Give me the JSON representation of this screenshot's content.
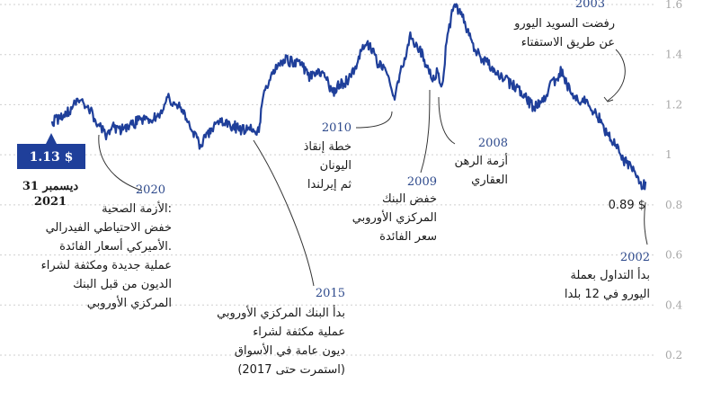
{
  "colors": {
    "line": "#1f3f9a",
    "grid": "#cfcfcf",
    "tick": "#a7a7a7",
    "year": "#2e4a8c",
    "badge": "#1f3f9a"
  },
  "chart_data": {
    "type": "line",
    "direction": "rtl",
    "ylim": [
      0.2,
      1.6
    ],
    "x_range": [
      2002,
      2021.99
    ],
    "yticks": [
      "1.6",
      "1.4",
      "1.2",
      "1",
      "0.8",
      "0.6",
      "0.4",
      "0.2"
    ],
    "ytick_values": [
      1.6,
      1.4,
      1.2,
      1.0,
      0.8,
      0.6,
      0.4,
      0.2
    ],
    "grid": true,
    "series": [
      {
        "x": [
          2002.0,
          2002.1,
          2002.3,
          2002.5,
          2002.8,
          2003.0,
          2003.3,
          2003.5,
          2003.75,
          2004.0,
          2004.2,
          2004.4,
          2004.65,
          2004.8,
          2005.0,
          2005.25,
          2005.5,
          2005.75,
          2006.0,
          2006.3,
          2006.5,
          2006.75,
          2007.0,
          2007.3,
          2007.5,
          2007.75,
          2008.0,
          2008.2,
          2008.4,
          2008.55,
          2008.7,
          2008.85,
          2009.0,
          2009.2,
          2009.45,
          2009.7,
          2009.95,
          2010.2,
          2010.45,
          2010.7,
          2011.0,
          2011.3,
          2011.55,
          2011.8,
          2012.0,
          2012.3,
          2012.55,
          2012.8,
          2013.0,
          2013.3,
          2013.6,
          2013.9,
          2014.2,
          2014.45,
          2014.7,
          2014.9,
          2015.0,
          2015.1,
          2015.3,
          2015.6,
          2016.0,
          2016.3,
          2016.6,
          2016.9,
          2017.0,
          2017.3,
          2017.6,
          2017.85,
          2018.1,
          2018.4,
          2018.7,
          2019.0,
          2019.3,
          2019.6,
          2019.9,
          2020.0,
          2020.2,
          2020.45,
          2020.7,
          2021.0,
          2021.3,
          2021.6,
          2021.99
        ],
        "values": [
          0.89,
          0.87,
          0.91,
          0.96,
          0.98,
          1.04,
          1.08,
          1.14,
          1.17,
          1.22,
          1.2,
          1.23,
          1.28,
          1.34,
          1.3,
          1.27,
          1.21,
          1.19,
          1.22,
          1.27,
          1.28,
          1.3,
          1.32,
          1.36,
          1.38,
          1.42,
          1.5,
          1.57,
          1.59,
          1.55,
          1.45,
          1.28,
          1.33,
          1.3,
          1.38,
          1.44,
          1.47,
          1.35,
          1.22,
          1.32,
          1.36,
          1.44,
          1.42,
          1.34,
          1.3,
          1.28,
          1.25,
          1.31,
          1.34,
          1.31,
          1.36,
          1.37,
          1.38,
          1.36,
          1.28,
          1.22,
          1.12,
          1.08,
          1.12,
          1.1,
          1.12,
          1.13,
          1.1,
          1.06,
          1.04,
          1.1,
          1.18,
          1.2,
          1.23,
          1.16,
          1.14,
          1.14,
          1.12,
          1.1,
          1.11,
          1.1,
          1.08,
          1.12,
          1.18,
          1.22,
          1.19,
          1.16,
          1.13
        ]
      }
    ],
    "start_label": "0.89 $",
    "end_badge": "1.13 $",
    "end_date": [
      "31 ديسمبر",
      "2021"
    ],
    "annotations": [
      {
        "year": "2003",
        "lines": [
          "رفضت السويد اليورو",
          "عن طريق الاستفتاء"
        ]
      },
      {
        "year": "2002",
        "lines": [
          "بدأ التداول بعملة",
          "اليورو في 12 بلدا"
        ]
      },
      {
        "year": "2008",
        "lines": [
          "أزمة الرهن",
          "العقاري"
        ]
      },
      {
        "year": "2009",
        "lines": [
          "خفض البنك",
          "المركزي الأوروبي",
          "سعر الفائدة"
        ]
      },
      {
        "year": "2010",
        "lines": [
          "خطة إنقاذ",
          "اليونان",
          "ثم إيرلندا"
        ]
      },
      {
        "year": "2015",
        "lines": [
          "بدأ البنك المركزي الأوروبي",
          "عملية مكثفة لشراء",
          "ديون عامة في الأسواق",
          "(استمرت حتى 2017)"
        ]
      },
      {
        "year": "2020",
        "lines": [
          "الأزمة الصحية:",
          "خفض الاحتياطي الفيدرالي",
          "الأميركي أسعار الفائدة.",
          "عملية جديدة ومكثفة لشراء",
          "الديون من قبل البنك",
          "المركزي الأوروبي"
        ]
      }
    ]
  }
}
